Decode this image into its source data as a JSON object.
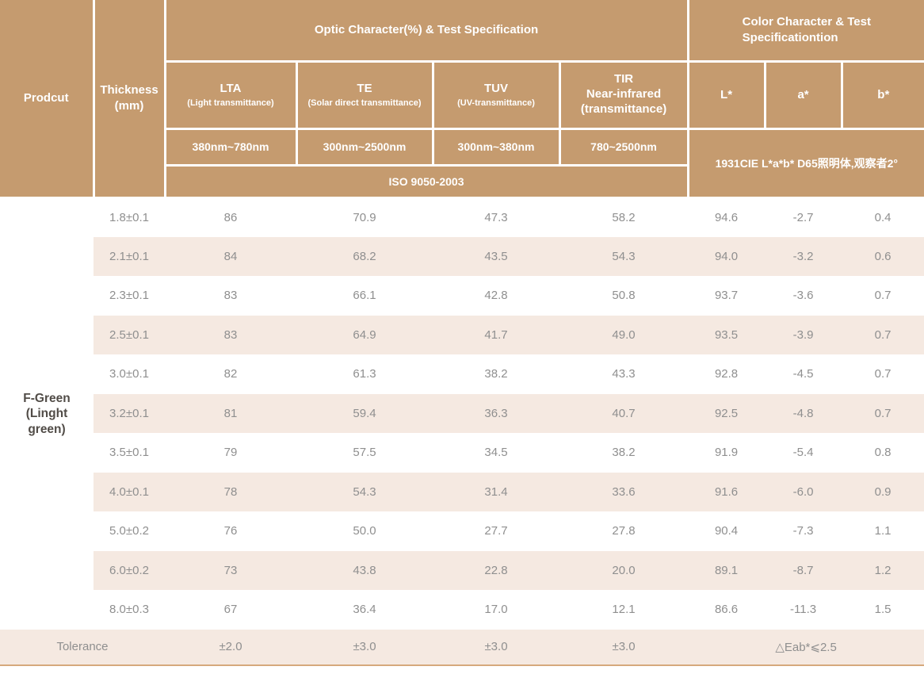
{
  "table": {
    "header": {
      "product": "Prodcut",
      "thickness": "Thickness\n(mm)",
      "optic_group": "Optic Character(%) & Test Specification",
      "color_group": "Color Character & Test\nSpecificationtion",
      "optic_columns": [
        {
          "title": "LTA",
          "sub": "(Light transmittance)",
          "range": "380nm~780nm"
        },
        {
          "title": "TE",
          "sub": "(Solar direct transmittance)",
          "range": "300nm~2500nm"
        },
        {
          "title": "TUV",
          "sub": "(UV-transmittance)",
          "range": "300nm~380nm"
        },
        {
          "title": "TIR\nNear-infrared\n(transmittance)",
          "sub": "",
          "range": "780~2500nm"
        }
      ],
      "color_columns": [
        "L*",
        "a*",
        "b*"
      ],
      "iso": "ISO 9050-2003",
      "cie": "1931CIE L*a*b* D65照明体,观察者2°"
    },
    "product_label": "F-Green\n(Linght\ngreen)",
    "rows": [
      {
        "thickness": "1.8±0.1",
        "values": [
          "86",
          "70.9",
          "47.3",
          "58.2",
          "94.6",
          "-2.7",
          "0.4"
        ]
      },
      {
        "thickness": "2.1±0.1",
        "values": [
          "84",
          "68.2",
          "43.5",
          "54.3",
          "94.0",
          "-3.2",
          "0.6"
        ]
      },
      {
        "thickness": "2.3±0.1",
        "values": [
          "83",
          "66.1",
          "42.8",
          "50.8",
          "93.7",
          "-3.6",
          "0.7"
        ]
      },
      {
        "thickness": "2.5±0.1",
        "values": [
          "83",
          "64.9",
          "41.7",
          "49.0",
          "93.5",
          "-3.9",
          "0.7"
        ]
      },
      {
        "thickness": "3.0±0.1",
        "values": [
          "82",
          "61.3",
          "38.2",
          "43.3",
          "92.8",
          "-4.5",
          "0.7"
        ]
      },
      {
        "thickness": "3.2±0.1",
        "values": [
          "81",
          "59.4",
          "36.3",
          "40.7",
          "92.5",
          "-4.8",
          "0.7"
        ]
      },
      {
        "thickness": "3.5±0.1",
        "values": [
          "79",
          "57.5",
          "34.5",
          "38.2",
          "91.9",
          "-5.4",
          "0.8"
        ]
      },
      {
        "thickness": "4.0±0.1",
        "values": [
          "78",
          "54.3",
          "31.4",
          "33.6",
          "91.6",
          "-6.0",
          "0.9"
        ]
      },
      {
        "thickness": "5.0±0.2",
        "values": [
          "76",
          "50.0",
          "27.7",
          "27.8",
          "90.4",
          "-7.3",
          "1.1"
        ]
      },
      {
        "thickness": "6.0±0.2",
        "values": [
          "73",
          "43.8",
          "22.8",
          "20.0",
          "89.1",
          "-8.7",
          "1.2"
        ]
      },
      {
        "thickness": "8.0±0.3",
        "values": [
          "67",
          "36.4",
          "17.0",
          "12.1",
          "86.6",
          "-11.3",
          "1.5"
        ]
      }
    ],
    "tolerance": {
      "label": "Tolerance",
      "values": [
        "±2.0",
        "±3.0",
        "±3.0",
        "±3.0"
      ],
      "color_value": "△Eab*⩽2.5"
    }
  },
  "colors": {
    "header_bg": "#c59b6f",
    "stripe_bg": "#f5e9e1",
    "body_text": "#8f8f8f",
    "product_text": "#514c47",
    "bottom_border": "#d6a97c"
  }
}
